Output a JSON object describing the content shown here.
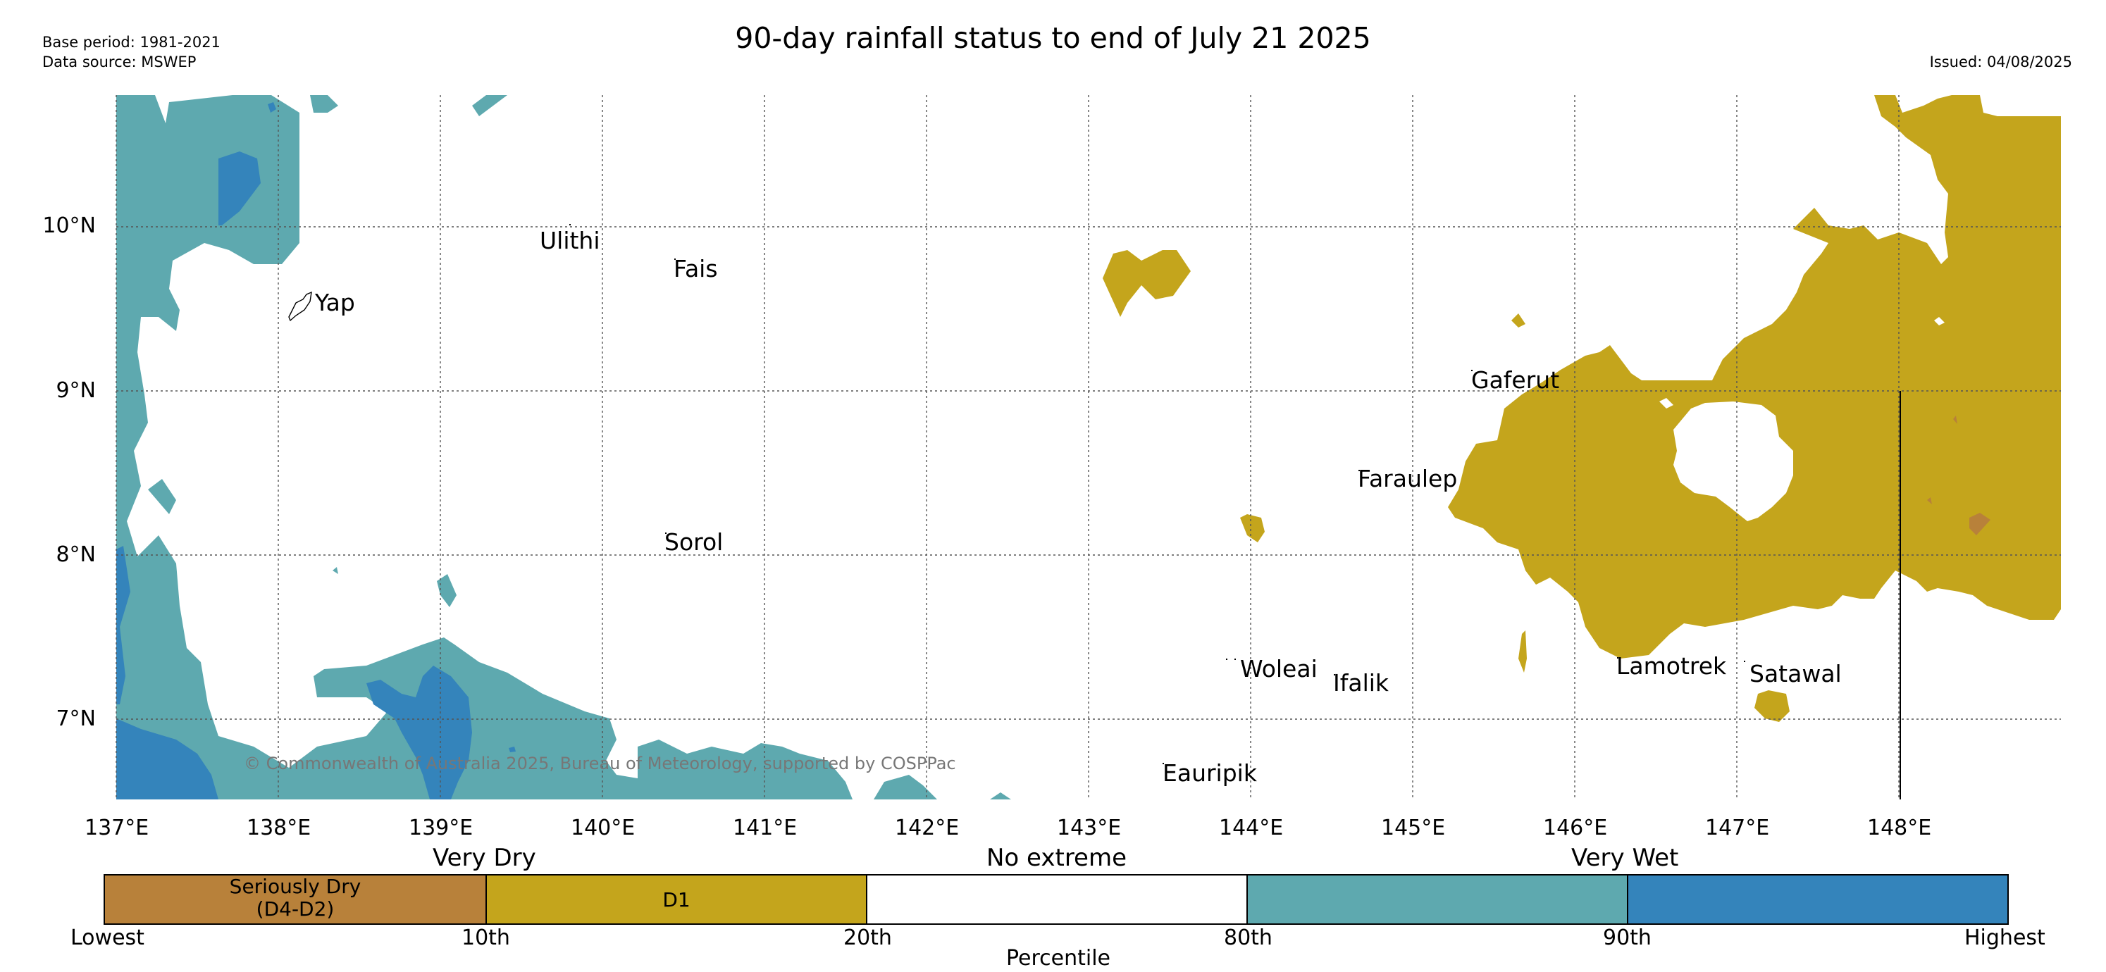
{
  "header": {
    "title": "90-day rainfall status to end of July 21 2025",
    "base_period": "Base period: 1981-2021",
    "data_source": "Data source: MSWEP",
    "issued": "Issued: 04/08/2025"
  },
  "map": {
    "copyright": "© Commonwealth of Australia 2025, Bureau of Meteorology, supported by COSPPac",
    "lon_ticks": [
      "137°E",
      "138°E",
      "139°E",
      "140°E",
      "141°E",
      "142°E",
      "143°E",
      "144°E",
      "145°E",
      "146°E",
      "147°E",
      "148°E"
    ],
    "lat_ticks": [
      "10°N",
      "9°N",
      "8°N",
      "7°N"
    ],
    "places": [
      "Yap",
      "Ulithi",
      "Fais",
      "Sorol",
      "Gaferut",
      "Faraulep",
      "Woleai",
      "Ifalik",
      "Eauripik",
      "Lamotrek",
      "Satawal"
    ]
  },
  "legend": {
    "groups": [
      "Very Dry",
      "No extreme",
      "Very Wet"
    ],
    "categories": [
      "Seriously Dry\n(D4-D2)",
      "D1",
      "",
      "",
      ""
    ],
    "category_line1": "Seriously Dry",
    "category_line2": "(D4-D2)",
    "category_d1": "D1",
    "tick_labels": [
      "Lowest",
      "10th",
      "20th",
      "80th",
      "90th",
      "Highest"
    ],
    "axis_label": "Percentile"
  },
  "colors": {
    "seriously_dry": "#b8813a",
    "d1": "#c4a51c",
    "no_extreme": "#ffffff",
    "very_wet_80_90": "#5ea9af",
    "very_wet_90_plus": "#3484bb",
    "grid": "#555555"
  }
}
